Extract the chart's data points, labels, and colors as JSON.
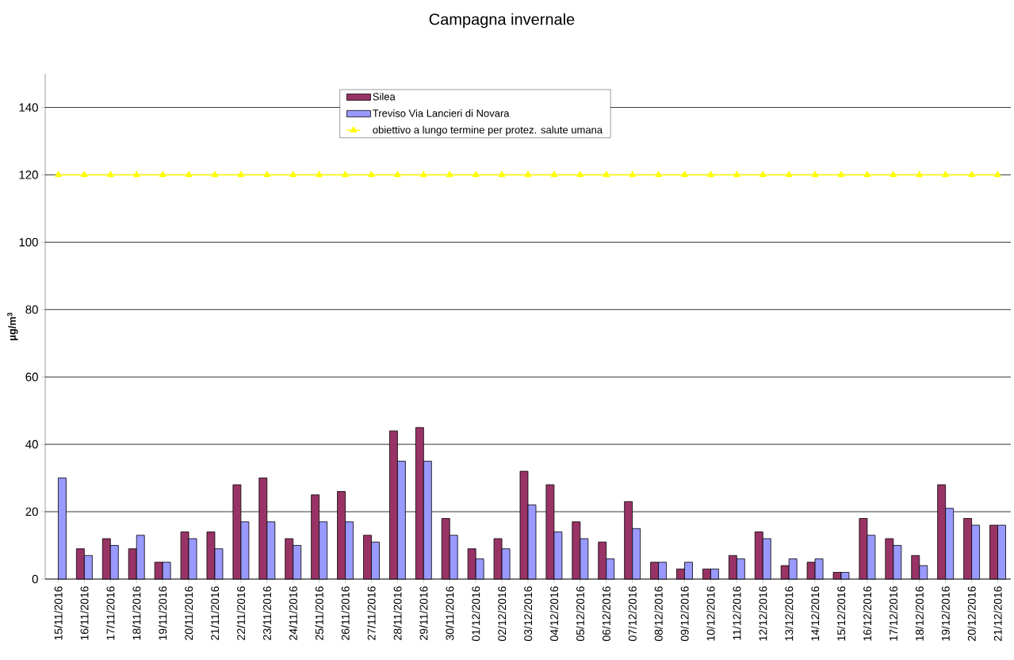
{
  "chart_data": {
    "type": "bar",
    "title": "Campagna invernale",
    "ylabel": "**µg/m$^{3}$**",
    "categories": [
      "15/11/2016",
      "16/11/2016",
      "17/11/2016",
      "18/11/2016",
      "19/11/2016",
      "20/11/2016",
      "21/11/2016",
      "22/11/2016",
      "23/11/2016",
      "24/11/2016",
      "25/11/2016",
      "26/11/2016",
      "27/11/2016",
      "28/11/2016",
      "29/11/2016",
      "30/11/2016",
      "01/12/2016",
      "02/12/2016",
      "03/12/2016",
      "04/12/2016",
      "05/12/2016",
      "06/12/2016",
      "07/12/2016",
      "08/12/2016",
      "09/12/2016",
      "10/12/2016",
      "11/12/2016",
      "12/12/2016",
      "13/12/2016",
      "14/12/2016",
      "15/12/2016",
      "16/12/2016",
      "17/12/2016",
      "18/12/2016",
      "19/12/2016",
      "20/12/2016",
      "21/12/2016"
    ],
    "series": [
      {
        "name": "Silea",
        "color": "#993366",
        "values": [
          null,
          9,
          12,
          9,
          5,
          14,
          14,
          28,
          30,
          12,
          25,
          26,
          13,
          44,
          45,
          18,
          9,
          12,
          32,
          28,
          17,
          11,
          23,
          5,
          3,
          3,
          7,
          14,
          4,
          5,
          2,
          18,
          12,
          7,
          28,
          18,
          16
        ]
      },
      {
        "name": "Treviso Via Lancieri di Novara",
        "color": "#9999ff",
        "values": [
          30,
          7,
          10,
          13,
          5,
          12,
          9,
          17,
          17,
          10,
          17,
          17,
          11,
          35,
          35,
          13,
          6,
          9,
          22,
          14,
          12,
          6,
          15,
          5,
          5,
          3,
          6,
          12,
          6,
          6,
          2,
          13,
          10,
          4,
          21,
          16,
          16
        ]
      },
      {
        "name": "obiettivo a lungo termine per protez. salute umana",
        "type": "line",
        "color": "#ffff00",
        "marker": "triangle",
        "values": [
          120,
          120,
          120,
          120,
          120,
          120,
          120,
          120,
          120,
          120,
          120,
          120,
          120,
          120,
          120,
          120,
          120,
          120,
          120,
          120,
          120,
          120,
          120,
          120,
          120,
          120,
          120,
          120,
          120,
          120,
          120,
          120,
          120,
          120,
          120,
          120,
          120
        ]
      }
    ],
    "ylim": [
      0,
      150
    ],
    "yticks": [
      0,
      20,
      40,
      60,
      80,
      100,
      120,
      140
    ],
    "grid": "y",
    "legend": "top"
  }
}
